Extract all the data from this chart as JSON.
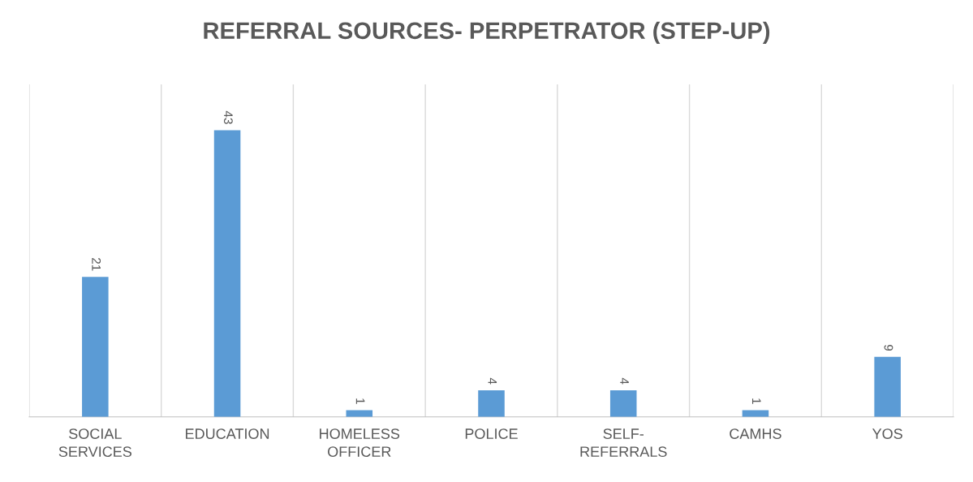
{
  "chart_data": {
    "type": "bar",
    "title": "REFERRAL SOURCES- PERPETRATOR (STEP-UP)",
    "categories": [
      "SOCIAL SERVICES",
      "EDUCATION",
      "HOMELESS OFFICER",
      "POLICE",
      "SELF-REFERRALS",
      "CAMHS",
      "YOS"
    ],
    "values": [
      21,
      43,
      1,
      4,
      4,
      1,
      9
    ],
    "color": "#5b9bd5",
    "data_labels": true,
    "grid": "x"
  }
}
